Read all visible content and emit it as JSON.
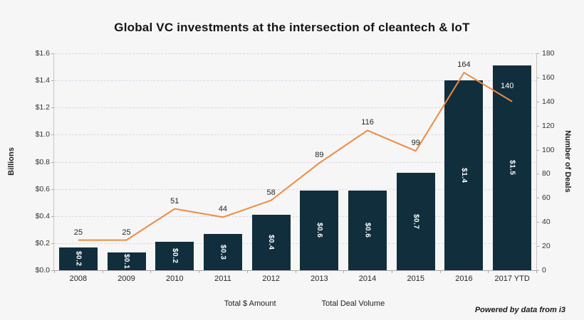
{
  "header": {
    "title": "Global VC investments at the intersection of cleantech & IoT"
  },
  "footer": {
    "credit": "Powered by data from i3"
  },
  "legend": {
    "items": [
      {
        "label": "Total $ Amount",
        "swatch": "bar-swatch",
        "color": "#112e3c"
      },
      {
        "label": "Total Deal Volume",
        "swatch": "line-swatch",
        "color": "#ef8b41"
      }
    ]
  },
  "chart_data": {
    "type": "bar",
    "subtype": "combo-bar-line-dual-axis",
    "title": "Global VC investments at the intersection of cleantech & IoT",
    "categories": [
      "2008",
      "2009",
      "2010",
      "2011",
      "2012",
      "2013",
      "2014",
      "2015",
      "2016",
      "2017 YTD"
    ],
    "series": [
      {
        "name": "Total $ Amount",
        "type": "bar",
        "axis": "left",
        "color": "#112e3c",
        "values": [
          0.17,
          0.13,
          0.21,
          0.27,
          0.41,
          0.59,
          0.59,
          0.72,
          1.4,
          1.51
        ],
        "labels": [
          "$0.2",
          "$0.1",
          "$0.2",
          "$0.3",
          "$0.4",
          "$0.6",
          "$0.6",
          "$0.7",
          "$1.4",
          "$1.5"
        ],
        "label_color": "#ffffff"
      },
      {
        "name": "Total Deal Volume",
        "type": "line",
        "axis": "right",
        "color": "#ef8b41",
        "values": [
          25,
          25,
          51,
          44,
          58,
          89,
          116,
          99,
          164,
          140
        ],
        "labels": [
          "25",
          "25",
          "51",
          "44",
          "58",
          "89",
          "116",
          "99",
          "164",
          "140"
        ],
        "label_color": "#262626",
        "label_inside_bar_index": 9,
        "label_inside_bar_color": "#ffffff"
      }
    ],
    "left_axis": {
      "title": "Billions",
      "min": 0,
      "max": 1.6,
      "tick_labels": [
        "$0.0",
        "$0.2",
        "$0.4",
        "$0.6",
        "$0.8",
        "$1.0",
        "$1.2",
        "$1.4",
        "$1.6"
      ]
    },
    "right_axis": {
      "title": "Number of Deals",
      "min": 0,
      "max": 180,
      "tick_labels": [
        "0",
        "20",
        "40",
        "60",
        "80",
        "100",
        "120",
        "140",
        "160",
        "180"
      ]
    },
    "grid": "horizontal dashed",
    "legend_position": "bottom center"
  }
}
